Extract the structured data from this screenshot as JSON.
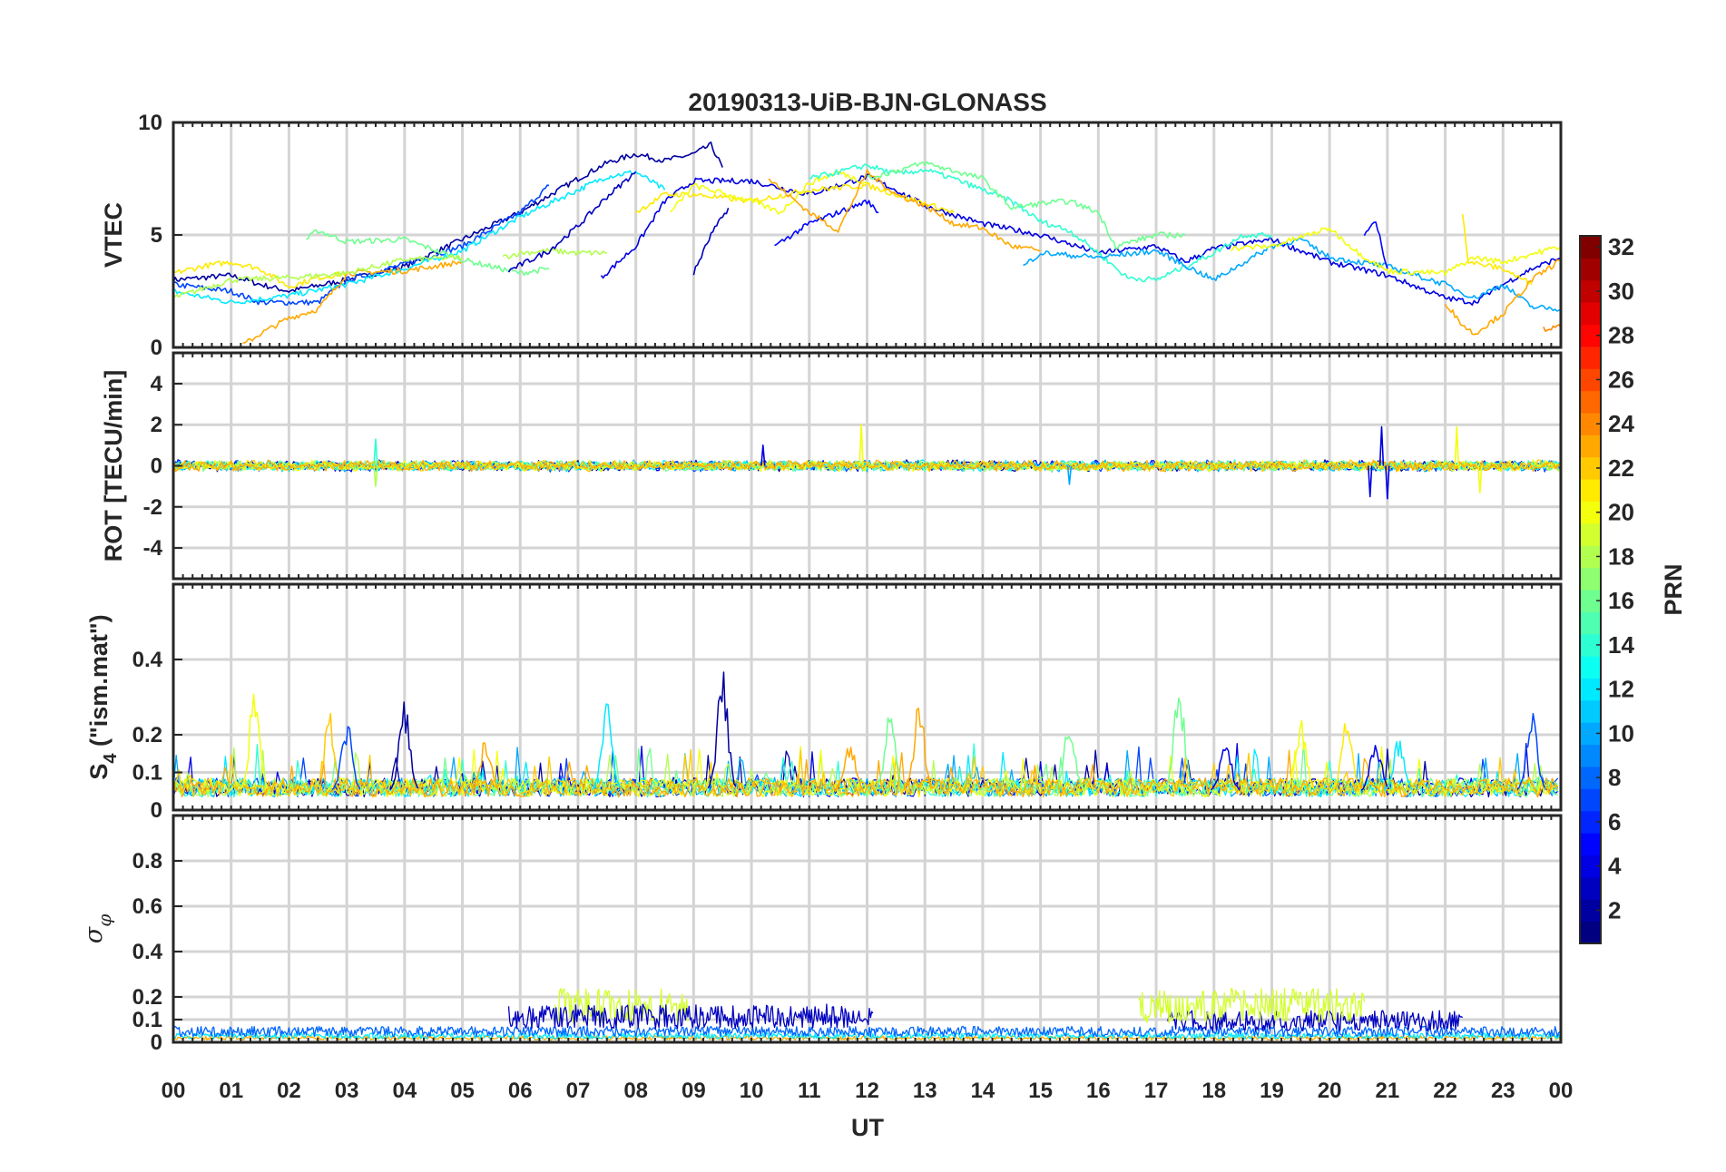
{
  "chart_data": {
    "type": "line",
    "title": "20190313-UiB-BJN-GLONASS",
    "xlabel": "UT",
    "x_tick_labels": [
      "00",
      "01",
      "02",
      "03",
      "04",
      "05",
      "06",
      "07",
      "08",
      "09",
      "10",
      "11",
      "12",
      "13",
      "14",
      "15",
      "16",
      "17",
      "18",
      "19",
      "20",
      "21",
      "22",
      "23",
      "00"
    ],
    "xlim": [
      0,
      24
    ],
    "grid": true,
    "colorbar": {
      "label": "PRN",
      "range": [
        1,
        32
      ],
      "colormap": "jet",
      "tick_labels": [
        "2",
        "4",
        "6",
        "8",
        "10",
        "12",
        "14",
        "16",
        "18",
        "20",
        "22",
        "24",
        "26",
        "28",
        "30",
        "32"
      ],
      "placement": "right"
    },
    "panels": [
      {
        "name": "vtec",
        "ylabel": "VTEC",
        "ylim": [
          0,
          10
        ],
        "y_tick_labels": [
          "0",
          "5",
          "10"
        ],
        "y_ticks": [
          0,
          5,
          10
        ],
        "series": [
          {
            "prn": 2,
            "x": [
              0,
              1,
              1.5,
              2,
              3,
              4,
              5,
              6,
              7,
              7.5,
              8,
              8.5,
              9,
              9.3,
              9.5
            ],
            "y": [
              3.0,
              3.2,
              2.8,
              2.5,
              3.0,
              3.6,
              4.8,
              6.0,
              7.5,
              8.2,
              8.6,
              8.3,
              8.6,
              9.0,
              8.0
            ]
          },
          {
            "prn": 7,
            "x": [
              0,
              1,
              1.5,
              2.5,
              3,
              4,
              5,
              6,
              6.5
            ],
            "y": [
              2.8,
              2.5,
              2.0,
              2.0,
              3.0,
              3.7,
              4.5,
              6.0,
              7.2
            ]
          },
          {
            "prn": 12,
            "x": [
              0,
              1,
              2,
              3,
              4,
              5,
              6,
              7,
              7.5,
              8,
              8.5
            ],
            "y": [
              2.5,
              2.0,
              2.3,
              2.8,
              3.5,
              4.3,
              5.8,
              7.0,
              7.6,
              7.8,
              7.0
            ]
          },
          {
            "prn": 21,
            "x": [
              0,
              0.5,
              1,
              1.5,
              2,
              2.5,
              3
            ],
            "y": [
              3.3,
              3.6,
              3.8,
              3.5,
              2.7,
              3.1,
              3.3
            ]
          },
          {
            "prn": 23,
            "x": [
              1.2,
              1.5,
              2,
              2.5,
              2.8,
              3,
              4,
              5
            ],
            "y": [
              0.1,
              0.6,
              1.3,
              1.7,
              2.6,
              3.3,
              3.4,
              3.8
            ]
          },
          {
            "prn": 16,
            "x": [
              2.3,
              2.5,
              3,
              4,
              5,
              6,
              6.5
            ],
            "y": [
              4.8,
              5.2,
              4.7,
              4.8,
              3.9,
              3.3,
              3.5
            ]
          },
          {
            "prn": 18,
            "x": [
              0,
              1,
              2,
              3,
              4,
              5
            ],
            "y": [
              2.2,
              3.0,
              3.1,
              3.3,
              3.9,
              4.0
            ]
          },
          {
            "prn": 18,
            "x": [
              5.7,
              6,
              6.5,
              7,
              7.5
            ],
            "y": [
              4.0,
              4.2,
              4.3,
              4.2,
              4.2
            ]
          },
          {
            "prn": 3,
            "x": [
              5.8,
              6.5,
              7,
              7.5,
              8
            ],
            "y": [
              3.4,
              4.3,
              5.4,
              6.7,
              7.8
            ]
          },
          {
            "prn": 4,
            "x": [
              7.4,
              8,
              8.5,
              9,
              10,
              11,
              12,
              12.5,
              13,
              14,
              15,
              16,
              17,
              17.5,
              18,
              19,
              20,
              21,
              22,
              22.5,
              23,
              23.5,
              24
            ],
            "y": [
              3.1,
              4.5,
              6.5,
              7.4,
              7.4,
              6.8,
              7.6,
              7.0,
              6.3,
              5.5,
              5.0,
              4.2,
              4.5,
              3.8,
              4.4,
              4.8,
              3.8,
              3.2,
              2.2,
              2.0,
              2.8,
              3.5,
              4.0
            ]
          },
          {
            "prn": 3,
            "x": [
              9,
              9.3,
              9.6
            ],
            "y": [
              3.3,
              5.0,
              6.2
            ]
          },
          {
            "prn": 5,
            "x": [
              10.4,
              11,
              12,
              12.2
            ],
            "y": [
              4.5,
              5.5,
              6.5,
              6.0
            ]
          },
          {
            "prn": 21,
            "x": [
              8,
              8.5,
              9,
              10,
              11,
              12,
              12.5,
              13.5
            ],
            "y": [
              6.0,
              6.8,
              6.8,
              6.5,
              7.0,
              7.2,
              6.8,
              6.0
            ]
          },
          {
            "prn": 20,
            "x": [
              8.6,
              9,
              10,
              10.5,
              11,
              11.5,
              12
            ],
            "y": [
              6.0,
              7.2,
              6.5,
              6.0,
              7.3,
              7.8,
              7.3
            ]
          },
          {
            "prn": 23,
            "x": [
              10.3,
              11,
              11.5,
              12,
              12.5,
              13,
              13.5,
              14,
              14.5,
              15
            ],
            "y": [
              7.5,
              6.0,
              5.2,
              7.8,
              6.8,
              6.3,
              5.5,
              5.3,
              4.5,
              4.3
            ]
          },
          {
            "prn": 14,
            "x": [
              11,
              11.5,
              12,
              12.5,
              13,
              13.5,
              14,
              14.5,
              15,
              15.5,
              16,
              16.5,
              17,
              17.5,
              18,
              18.5,
              19
            ],
            "y": [
              7.5,
              7.8,
              8.1,
              7.7,
              7.9,
              7.5,
              7.0,
              6.5,
              5.6,
              5.2,
              4.2,
              3.1,
              3.0,
              3.6,
              4.2,
              5.0,
              5.0
            ]
          },
          {
            "prn": 16,
            "x": [
              12,
              13,
              14,
              14.5,
              15,
              15.5,
              16,
              16.3,
              17,
              17.5
            ],
            "y": [
              7.5,
              8.2,
              7.5,
              6.2,
              6.4,
              6.5,
              6.0,
              4.5,
              5.0,
              5.0
            ]
          },
          {
            "prn": 10,
            "x": [
              14.7,
              15,
              16,
              17,
              18,
              19,
              19.5,
              20,
              21,
              22,
              22.5,
              23,
              23.5,
              24
            ],
            "y": [
              3.6,
              4.2,
              4.0,
              4.3,
              3.0,
              4.5,
              4.8,
              4.0,
              3.6,
              2.8,
              2.2,
              2.8,
              1.8,
              1.7
            ]
          },
          {
            "prn": 20,
            "x": [
              18.3,
              19,
              20,
              20.5,
              21,
              22,
              22.5,
              23,
              24
            ],
            "y": [
              4.4,
              4.5,
              5.3,
              4.2,
              3.4,
              3.3,
              4.0,
              3.8,
              4.5
            ]
          },
          {
            "prn": 5,
            "x": [
              20.6,
              20.8,
              21
            ],
            "y": [
              5.0,
              5.6,
              3.5
            ]
          },
          {
            "prn": 21,
            "x": [
              22.3,
              22.4,
              23,
              23.5
            ],
            "y": [
              6.0,
              3.8,
              3.5,
              2.8
            ]
          },
          {
            "prn": 23,
            "x": [
              22,
              22.3,
              22.5,
              23,
              23.5,
              24
            ],
            "y": [
              2.0,
              1.0,
              0.6,
              1.5,
              3.0,
              3.9
            ]
          },
          {
            "prn": 24,
            "x": [
              23.7,
              24
            ],
            "y": [
              0.8,
              0.9
            ]
          }
        ]
      },
      {
        "name": "rot",
        "ylabel": "ROT [TECU/min]",
        "ylim": [
          -5.5,
          5.5
        ],
        "y_tick_labels": [
          "-4",
          "-2",
          "0",
          "2",
          "4"
        ],
        "y_ticks": [
          -4,
          -2,
          0,
          2,
          4
        ],
        "noise_amplitude": 0.3,
        "spikes": [
          {
            "prn": 14,
            "x": 3.5,
            "y": 1.3
          },
          {
            "prn": 4,
            "x": 10.2,
            "y": 1.0
          },
          {
            "prn": 20,
            "x": 11.9,
            "y": 2.0
          },
          {
            "prn": 18,
            "x": 3.5,
            "y": -1.0
          },
          {
            "prn": 4,
            "x": 20.7,
            "y": -1.5
          },
          {
            "prn": 4,
            "x": 20.9,
            "y": 1.9
          },
          {
            "prn": 4,
            "x": 21.0,
            "y": -1.6
          },
          {
            "prn": 20,
            "x": 22.2,
            "y": 1.9
          },
          {
            "prn": 20,
            "x": 22.6,
            "y": -1.3
          },
          {
            "prn": 10,
            "x": 15.5,
            "y": -0.9
          }
        ]
      },
      {
        "name": "s4",
        "ylabel": "S4 (\"ism.mat\")",
        "ylabel_main": "S",
        "ylabel_sub": "4",
        "ylabel_rest": " (\"ism.mat\")",
        "ylim": [
          0,
          0.6
        ],
        "y_tick_labels": [
          "0",
          "0.1",
          "0.2",
          "0.4"
        ],
        "y_ticks": [
          0,
          0.1,
          0.2,
          0.4
        ],
        "baseline": 0.05,
        "spikes": [
          {
            "prn": 20,
            "x": 1.4,
            "y": 0.32
          },
          {
            "prn": 22,
            "x": 2.7,
            "y": 0.27
          },
          {
            "prn": 7,
            "x": 3.0,
            "y": 0.25
          },
          {
            "prn": 2,
            "x": 4.0,
            "y": 0.3
          },
          {
            "prn": 23,
            "x": 5.4,
            "y": 0.2
          },
          {
            "prn": 12,
            "x": 7.5,
            "y": 0.29
          },
          {
            "prn": 2,
            "x": 9.5,
            "y": 0.4
          },
          {
            "prn": 23,
            "x": 11.7,
            "y": 0.2
          },
          {
            "prn": 16,
            "x": 12.4,
            "y": 0.28
          },
          {
            "prn": 23,
            "x": 12.9,
            "y": 0.3
          },
          {
            "prn": 16,
            "x": 15.5,
            "y": 0.26
          },
          {
            "prn": 16,
            "x": 17.4,
            "y": 0.35
          },
          {
            "prn": 20,
            "x": 19.5,
            "y": 0.26
          },
          {
            "prn": 21,
            "x": 20.3,
            "y": 0.25
          },
          {
            "prn": 7,
            "x": 23.5,
            "y": 0.28
          },
          {
            "prn": 4,
            "x": 20.8,
            "y": 0.2
          },
          {
            "prn": 12,
            "x": 21.2,
            "y": 0.2
          },
          {
            "prn": 4,
            "x": 18.2,
            "y": 0.2
          }
        ]
      },
      {
        "name": "sigma_phi",
        "ylabel": "σ φ",
        "ylabel_main": "σ",
        "ylabel_sub": "φ",
        "ylim": [
          0,
          1
        ],
        "y_tick_labels": [
          "0",
          "0.1",
          "0.2",
          "0.4",
          "0.6",
          "0.8"
        ],
        "y_ticks": [
          0,
          0.1,
          0.2,
          0.4,
          0.6,
          0.8
        ],
        "elevated_intervals": [
          {
            "prn": 3,
            "x": [
              5.8,
              12.1
            ],
            "level": 0.12
          },
          {
            "prn": 19,
            "x": [
              6.6,
              8.9
            ],
            "level": 0.17
          },
          {
            "prn": 19,
            "x": [
              16.7,
              20.6
            ],
            "level": 0.17
          },
          {
            "prn": 3,
            "x": [
              17.2,
              22.3
            ],
            "level": 0.1
          },
          {
            "prn": 8,
            "x": [
              0,
              24
            ],
            "level": 0.05
          },
          {
            "prn": 12,
            "x": [
              0,
              24
            ],
            "level": 0.03
          },
          {
            "prn": 23,
            "x": [
              0,
              24
            ],
            "level": 0.02
          }
        ]
      }
    ]
  }
}
